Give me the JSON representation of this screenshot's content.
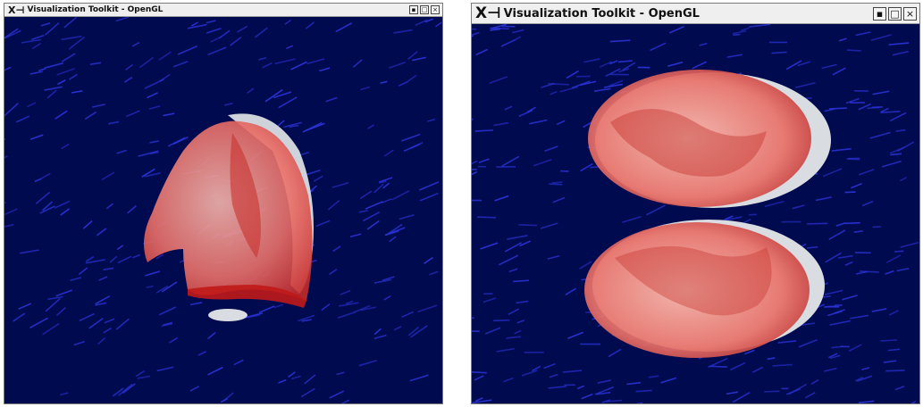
{
  "windows": [
    {
      "title": "Visualization Toolkit - OpenGL",
      "app_icon": "X-window-icon",
      "buttons": [
        "minimize-icon",
        "maximize-icon",
        "close-icon"
      ],
      "button_glyphs": [
        "▪",
        "□",
        "×"
      ]
    },
    {
      "title": "Visualization Toolkit - OpenGL",
      "app_icon": "X-window-icon",
      "buttons": [
        "minimize-icon",
        "maximize-icon",
        "close-icon"
      ],
      "button_glyphs": [
        "▪",
        "□",
        "×"
      ]
    }
  ],
  "colors": {
    "background": "#000a4f",
    "surface_red": "#e85a5a",
    "surface_white": "#d9dde2",
    "vector_arrows": "#2b33d6"
  }
}
